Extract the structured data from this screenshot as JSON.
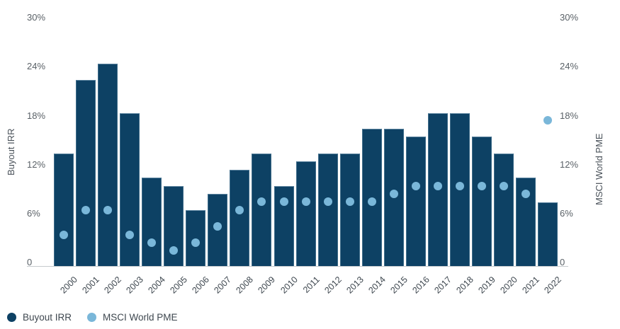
{
  "chart_data": {
    "type": "bar",
    "subtype": "dual-axis bar + scatter",
    "categories": [
      "2000",
      "2001",
      "2002",
      "2003",
      "2004",
      "2005",
      "2006",
      "2007",
      "2008",
      "2009",
      "2010",
      "2011",
      "2012",
      "2013",
      "2014",
      "2015",
      "2016",
      "2017",
      "2018",
      "2019",
      "2020",
      "2021",
      "2022"
    ],
    "series": [
      {
        "name": "Buyout IRR",
        "type": "bar",
        "axis": "left",
        "color": "#0d4164",
        "values": [
          13.4,
          22.4,
          24.4,
          18.3,
          10.4,
          9.4,
          6.4,
          8.4,
          11.4,
          13.4,
          9.4,
          12.4,
          13.4,
          13.4,
          16.4,
          16.4,
          15.4,
          18.3,
          18.3,
          15.4,
          13.4,
          10.4,
          7.4
        ]
      },
      {
        "name": "MSCI World PME",
        "type": "scatter",
        "axis": "right",
        "color": "#7ab7d9",
        "values": [
          3.4,
          6.4,
          6.4,
          3.4,
          2.4,
          1.5,
          2.4,
          4.4,
          6.4,
          7.5,
          7.5,
          7.5,
          7.5,
          7.5,
          7.5,
          8.4,
          9.4,
          9.4,
          9.4,
          9.4,
          9.4,
          8.4,
          17.4
        ]
      }
    ],
    "left_axis": {
      "title": "Buyout IRR",
      "ticks": [
        "0",
        "6%",
        "12%",
        "18%",
        "24%",
        "30%"
      ],
      "tick_values": [
        0,
        6,
        12,
        18,
        24,
        30
      ],
      "range": [
        0,
        30
      ]
    },
    "right_axis": {
      "title": "MSCI World PME",
      "ticks": [
        "0",
        "6%",
        "12%",
        "18%",
        "24%",
        "30%"
      ],
      "tick_values": [
        0,
        6,
        12,
        18,
        24,
        30
      ],
      "range": [
        0,
        30
      ]
    },
    "legend": {
      "position": "bottom-left",
      "items": [
        {
          "label": "Buyout IRR",
          "color": "#0d4164"
        },
        {
          "label": "MSCI World PME",
          "color": "#7ab7d9"
        }
      ]
    },
    "grid": false,
    "background": "#ffffff",
    "x_label_rotation": -45
  }
}
